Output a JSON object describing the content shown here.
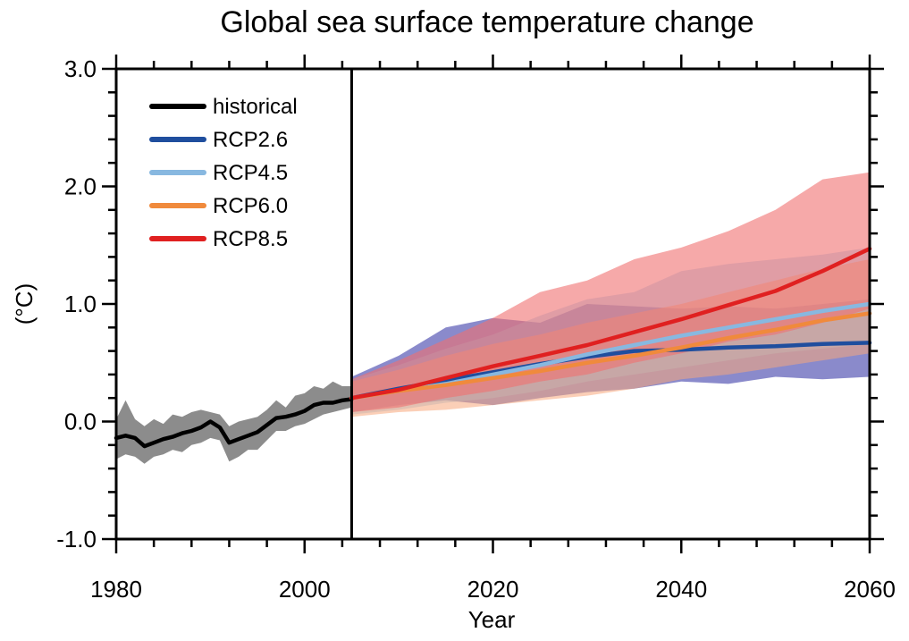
{
  "chart_data": {
    "type": "line",
    "title": "Global sea surface temperature change",
    "xlabel": "Year",
    "ylabel": "(°C)",
    "xlim": [
      1980,
      2060
    ],
    "ylim": [
      -1.0,
      3.0
    ],
    "x_ticks": [
      1980,
      2000,
      2020,
      2040,
      2060
    ],
    "x_tick_labels": [
      "1980",
      "2000",
      "2020",
      "2040",
      "2060"
    ],
    "y_ticks": [
      -1.0,
      0.0,
      1.0,
      2.0,
      3.0
    ],
    "y_tick_labels": [
      "-1.0",
      "0.0",
      "1.0",
      "2.0",
      "3.0"
    ],
    "x_minor_step": 4,
    "y_minor_step": 0.2,
    "vertical_marker": 2005,
    "legend_position": "top-left",
    "series": [
      {
        "name": "historical",
        "color": "#000000",
        "band_color": "#808080",
        "band_opacity": 0.9,
        "x": [
          1980,
          1981,
          1982,
          1983,
          1984,
          1985,
          1986,
          1987,
          1988,
          1989,
          1990,
          1991,
          1992,
          1993,
          1994,
          1995,
          1996,
          1997,
          1998,
          1999,
          2000,
          2001,
          2002,
          2003,
          2004,
          2005
        ],
        "y": [
          -0.14,
          -0.12,
          -0.14,
          -0.21,
          -0.18,
          -0.15,
          -0.13,
          -0.1,
          -0.08,
          -0.05,
          0.0,
          -0.05,
          -0.18,
          -0.15,
          -0.12,
          -0.09,
          -0.03,
          0.03,
          0.04,
          0.06,
          0.09,
          0.14,
          0.16,
          0.16,
          0.18,
          0.19
        ],
        "lower": [
          -0.32,
          -0.28,
          -0.3,
          -0.36,
          -0.3,
          -0.28,
          -0.24,
          -0.26,
          -0.2,
          -0.18,
          -0.14,
          -0.16,
          -0.34,
          -0.3,
          -0.24,
          -0.24,
          -0.16,
          -0.08,
          -0.08,
          -0.04,
          -0.02,
          0.02,
          0.06,
          0.08,
          0.1,
          0.12
        ],
        "upper": [
          0.02,
          0.18,
          0.02,
          -0.04,
          0.02,
          -0.02,
          0.06,
          0.04,
          0.08,
          0.1,
          0.08,
          0.06,
          -0.04,
          0.0,
          0.02,
          0.04,
          0.1,
          0.18,
          0.12,
          0.22,
          0.24,
          0.3,
          0.28,
          0.34,
          0.3,
          0.3
        ]
      },
      {
        "name": "RCP2.6",
        "color": "#1f4e9e",
        "band_color": "#3c3ca8",
        "band_opacity": 0.6,
        "x": [
          2005,
          2010,
          2015,
          2020,
          2025,
          2030,
          2035,
          2040,
          2045,
          2050,
          2055,
          2060
        ],
        "y": [
          0.2,
          0.28,
          0.35,
          0.42,
          0.49,
          0.55,
          0.6,
          0.61,
          0.63,
          0.64,
          0.66,
          0.67
        ],
        "lower": [
          0.08,
          0.14,
          0.18,
          0.14,
          0.2,
          0.25,
          0.28,
          0.34,
          0.32,
          0.38,
          0.36,
          0.38
        ],
        "upper": [
          0.38,
          0.56,
          0.8,
          0.88,
          0.84,
          1.0,
          0.98,
          0.96,
          0.98,
          0.96,
          1.0,
          1.04
        ]
      },
      {
        "name": "RCP4.5",
        "color": "#88b8e0",
        "band_color": "#8fc3ea",
        "band_opacity": 0.5,
        "x": [
          2005,
          2010,
          2015,
          2020,
          2025,
          2030,
          2035,
          2040,
          2045,
          2050,
          2055,
          2060
        ],
        "y": [
          0.2,
          0.26,
          0.32,
          0.4,
          0.48,
          0.57,
          0.65,
          0.73,
          0.8,
          0.87,
          0.94,
          1.0
        ],
        "lower": [
          0.06,
          0.1,
          0.16,
          0.2,
          0.26,
          0.34,
          0.4,
          0.46,
          0.52,
          0.58,
          0.62,
          0.66
        ],
        "upper": [
          0.36,
          0.48,
          0.62,
          0.74,
          0.9,
          1.04,
          1.1,
          1.28,
          1.34,
          1.38,
          1.42,
          1.48
        ]
      },
      {
        "name": "RCP6.0",
        "color": "#f08a3c",
        "band_color": "#f7a77b",
        "band_opacity": 0.55,
        "x": [
          2005,
          2010,
          2015,
          2020,
          2025,
          2030,
          2035,
          2040,
          2045,
          2050,
          2055,
          2060
        ],
        "y": [
          0.2,
          0.26,
          0.31,
          0.37,
          0.43,
          0.5,
          0.56,
          0.63,
          0.71,
          0.78,
          0.86,
          0.92
        ],
        "lower": [
          0.04,
          0.08,
          0.1,
          0.14,
          0.18,
          0.22,
          0.28,
          0.36,
          0.4,
          0.46,
          0.52,
          0.58
        ],
        "upper": [
          0.34,
          0.44,
          0.56,
          0.66,
          0.74,
          0.84,
          0.92,
          1.0,
          1.1,
          1.2,
          1.3,
          1.38
        ]
      },
      {
        "name": "RCP8.5",
        "color": "#e02020",
        "band_color": "#f07070",
        "band_opacity": 0.6,
        "x": [
          2005,
          2010,
          2015,
          2020,
          2025,
          2030,
          2035,
          2040,
          2045,
          2050,
          2055,
          2060
        ],
        "y": [
          0.2,
          0.27,
          0.37,
          0.47,
          0.56,
          0.65,
          0.76,
          0.87,
          0.99,
          1.11,
          1.28,
          1.47
        ],
        "lower": [
          0.08,
          0.12,
          0.2,
          0.26,
          0.34,
          0.4,
          0.5,
          0.58,
          0.68,
          0.74,
          0.84,
          0.96
        ],
        "upper": [
          0.36,
          0.52,
          0.7,
          0.88,
          1.1,
          1.2,
          1.38,
          1.48,
          1.62,
          1.8,
          2.06,
          2.12
        ]
      }
    ]
  }
}
